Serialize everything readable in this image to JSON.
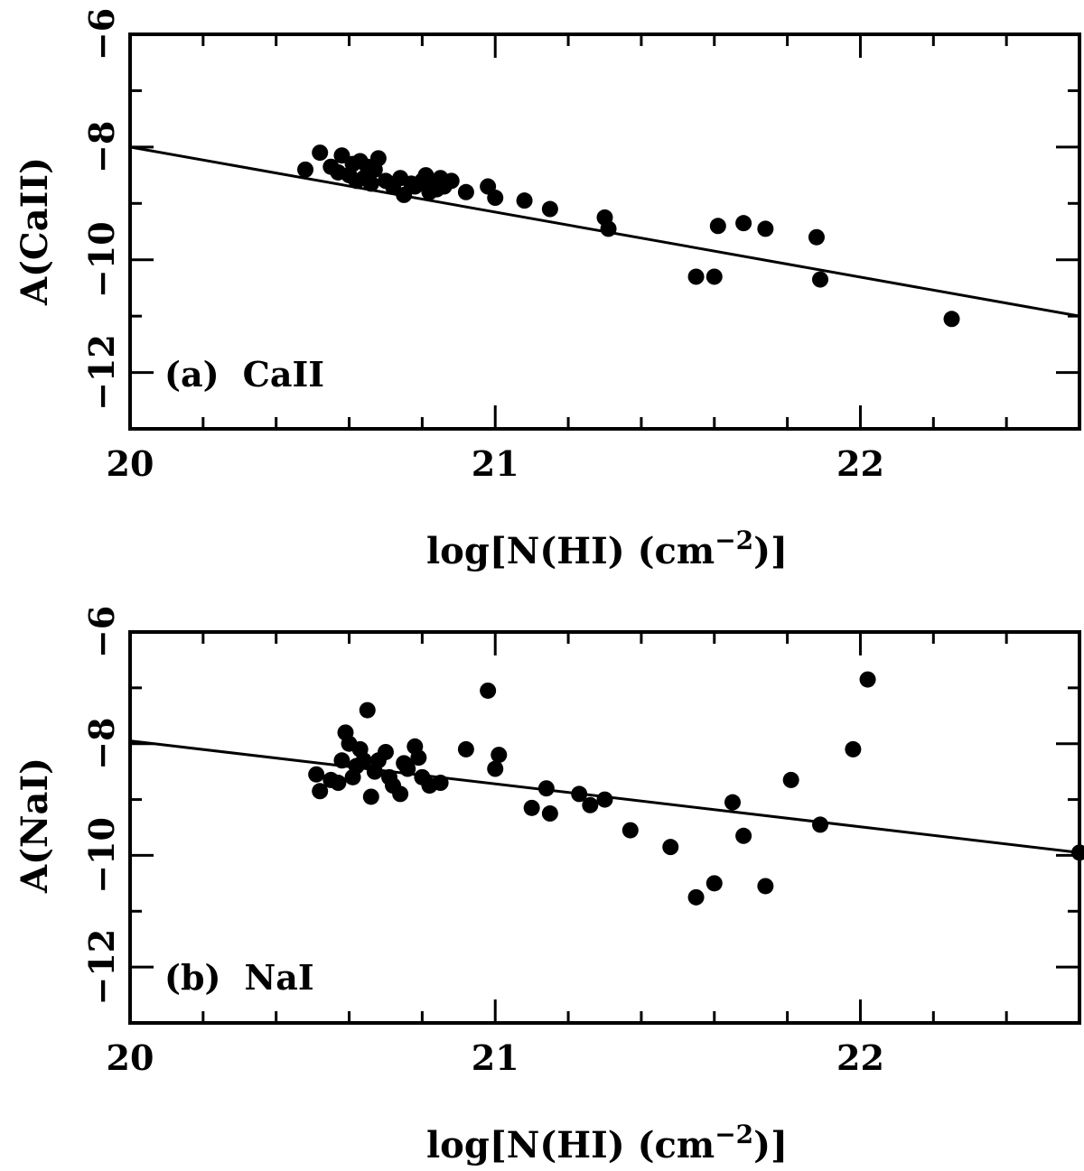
{
  "chart_data": [
    {
      "type": "scatter",
      "panel_label": "(a)",
      "panel_species": "CaII",
      "ylabel": "A(CaII)",
      "xlabel_prefix": "log[N(HI) (cm",
      "xlabel_exponent": "−2",
      "xlabel_suffix": ")]",
      "xlim": [
        20,
        22.6
      ],
      "ylim": [
        -13.0,
        -6.0
      ],
      "y_reversed": true,
      "x_ticks": [
        {
          "value": 20,
          "label": "20"
        },
        {
          "value": 21,
          "label": "21"
        },
        {
          "value": 22,
          "label": "22"
        }
      ],
      "y_ticks": [
        {
          "value": -6,
          "label": "−6"
        },
        {
          "value": -8,
          "label": "−8"
        },
        {
          "value": -10,
          "label": "−10"
        },
        {
          "value": -12,
          "label": "−12"
        }
      ],
      "fit_line": {
        "x": [
          20.0,
          22.6
        ],
        "y": [
          -8.0,
          -11.0
        ]
      },
      "points": {
        "x": [
          20.48,
          20.52,
          20.55,
          20.57,
          20.58,
          20.6,
          20.61,
          20.62,
          20.63,
          20.64,
          20.65,
          20.66,
          20.67,
          20.68,
          20.7,
          20.72,
          20.74,
          20.75,
          20.77,
          20.78,
          20.8,
          20.81,
          20.82,
          20.83,
          20.84,
          20.85,
          20.86,
          20.88,
          20.92,
          20.98,
          21.0,
          21.08,
          21.15,
          21.3,
          21.31,
          21.55,
          21.6,
          21.61,
          21.68,
          21.74,
          21.88,
          21.89,
          22.25
        ],
        "y": [
          -8.4,
          -8.1,
          -8.35,
          -8.45,
          -8.15,
          -8.5,
          -8.3,
          -8.6,
          -8.25,
          -8.55,
          -8.35,
          -8.65,
          -8.4,
          -8.2,
          -8.6,
          -8.7,
          -8.55,
          -8.85,
          -8.65,
          -8.7,
          -8.6,
          -8.5,
          -8.8,
          -8.65,
          -8.75,
          -8.55,
          -8.7,
          -8.6,
          -8.8,
          -8.7,
          -8.9,
          -8.95,
          -9.1,
          -9.25,
          -9.45,
          -10.3,
          -10.3,
          -9.4,
          -9.35,
          -9.45,
          -9.6,
          -10.35,
          -11.05
        ]
      }
    },
    {
      "type": "scatter",
      "panel_label": "(b)",
      "panel_species": "NaI",
      "ylabel": "A(NaI)",
      "xlabel_prefix": "log[N(HI) (cm",
      "xlabel_exponent": "−2",
      "xlabel_suffix": ")]",
      "xlim": [
        20,
        22.6
      ],
      "ylim": [
        -13.0,
        -6.0
      ],
      "y_reversed": true,
      "x_ticks": [
        {
          "value": 20,
          "label": "20"
        },
        {
          "value": 21,
          "label": "21"
        },
        {
          "value": 22,
          "label": "22"
        }
      ],
      "y_ticks": [
        {
          "value": -6,
          "label": "−6"
        },
        {
          "value": -8,
          "label": "−8"
        },
        {
          "value": -10,
          "label": "−10"
        },
        {
          "value": -12,
          "label": "−12"
        }
      ],
      "fit_line": {
        "x": [
          20.0,
          22.6
        ],
        "y": [
          -7.95,
          -9.95
        ]
      },
      "points": {
        "x": [
          20.51,
          20.52,
          20.55,
          20.57,
          20.58,
          20.59,
          20.6,
          20.61,
          20.62,
          20.63,
          20.64,
          20.65,
          20.66,
          20.67,
          20.68,
          20.7,
          20.71,
          20.72,
          20.74,
          20.75,
          20.76,
          20.78,
          20.79,
          20.8,
          20.82,
          20.85,
          20.92,
          20.98,
          21.0,
          21.01,
          21.1,
          21.14,
          21.15,
          21.23,
          21.26,
          21.3,
          21.37,
          21.48,
          21.55,
          21.6,
          21.65,
          21.68,
          21.74,
          21.81,
          21.89,
          21.98,
          22.02,
          22.6
        ],
        "y": [
          -8.55,
          -8.85,
          -8.65,
          -8.7,
          -8.3,
          -7.8,
          -8.0,
          -8.6,
          -8.4,
          -8.1,
          -8.3,
          -7.4,
          -8.95,
          -8.5,
          -8.3,
          -8.15,
          -8.6,
          -8.75,
          -8.9,
          -8.35,
          -8.45,
          -8.05,
          -8.25,
          -8.6,
          -8.75,
          -8.7,
          -8.1,
          -7.05,
          -8.45,
          -8.2,
          -9.15,
          -8.8,
          -9.25,
          -8.9,
          -9.1,
          -9.0,
          -9.55,
          -9.85,
          -10.75,
          -10.5,
          -9.05,
          -9.65,
          -10.55,
          -8.65,
          -9.45,
          -8.1,
          -6.85,
          -9.95
        ]
      }
    }
  ]
}
